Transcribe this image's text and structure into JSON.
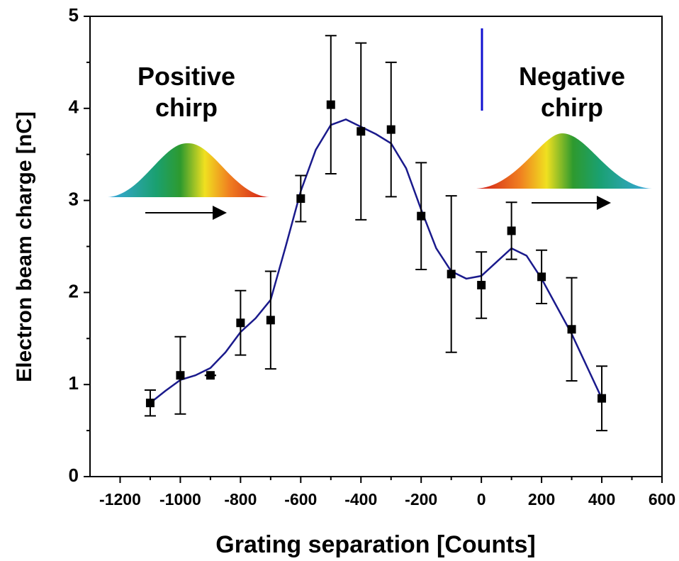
{
  "chart_data": {
    "type": "scatter",
    "xlabel": "Grating separation [Counts]",
    "ylabel": "Electron beam charge [nC]",
    "annotations": [
      "Positive chirp",
      "Negative chirp"
    ],
    "xlim": [
      -1300,
      600
    ],
    "xticks": [
      -1200,
      -1000,
      -800,
      -600,
      -400,
      -200,
      0,
      200,
      400,
      600
    ],
    "ylim": [
      0,
      5
    ],
    "yticks": [
      0,
      1,
      2,
      3,
      4,
      5
    ],
    "series": [
      {
        "color": "#000000",
        "x": [
          -1100,
          -1000,
          -900,
          -800,
          -700,
          -600,
          -500,
          -400,
          -300,
          -200,
          -100,
          0,
          100,
          200,
          300,
          400
        ],
        "values": [
          0.8,
          1.1,
          1.1,
          1.67,
          1.7,
          3.02,
          4.04,
          3.75,
          3.77,
          2.83,
          2.2,
          2.08,
          2.67,
          2.17,
          1.6,
          0.85
        ],
        "errors": [
          0.14,
          0.42,
          0,
          0.35,
          0.53,
          0.25,
          0.75,
          0.96,
          0.73,
          0.58,
          0.85,
          0.36,
          0.31,
          0.29,
          0.56,
          0.35
        ]
      }
    ],
    "fit": {
      "color": "#1a1a8c",
      "x": [
        -1100,
        -1050,
        -1000,
        -950,
        -900,
        -850,
        -800,
        -750,
        -700,
        -650,
        -600,
        -550,
        -500,
        -450,
        -400,
        -350,
        -300,
        -250,
        -200,
        -150,
        -100,
        -50,
        0,
        50,
        100,
        150,
        200,
        250,
        300,
        350,
        400
      ],
      "values": [
        0.8,
        0.93,
        1.05,
        1.1,
        1.18,
        1.35,
        1.57,
        1.72,
        1.92,
        2.5,
        3.1,
        3.55,
        3.82,
        3.88,
        3.8,
        3.72,
        3.62,
        3.35,
        2.9,
        2.48,
        2.23,
        2.15,
        2.18,
        2.33,
        2.48,
        2.4,
        2.15,
        1.85,
        1.55,
        1.2,
        0.85
      ]
    }
  }
}
